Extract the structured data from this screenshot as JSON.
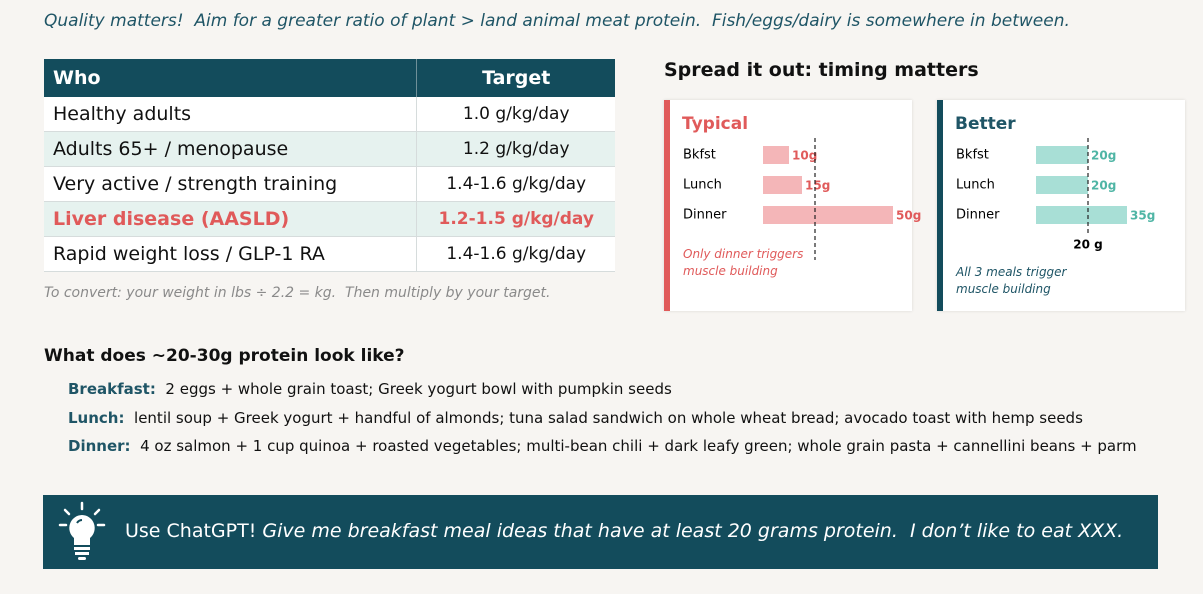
{
  "header": {
    "text": "Quality matters!  Aim for a greater ratio of plant > land animal meat protein.  Fish/eggs/dairy is somewhere in between."
  },
  "table": {
    "columns": [
      "Who",
      "Target"
    ],
    "rows": [
      [
        "Healthy adults",
        "1.0 g/kg/day"
      ],
      [
        "Adults 65+ / menopause",
        "1.2 g/kg/day"
      ],
      [
        "Very active / strength training",
        "1.4-1.6 g/kg/day"
      ],
      [
        "Liver disease (AASLD)",
        "1.2-1.5 g/kg/day"
      ],
      [
        "Rapid weight loss / GLP-1 RA",
        "1.4-1.6 g/kg/day"
      ]
    ],
    "note": "To convert: your weight in lbs ÷ 2.2 = kg.  Then multiply by your target."
  },
  "timing": {
    "title": "Spread it out: timing matters",
    "charts": [
      {
        "type": "bar",
        "title": "Typical",
        "categories": [
          "Bkfst",
          "Lunch",
          "Dinner"
        ],
        "values": [
          10,
          15,
          50
        ],
        "value_labels": [
          "10g",
          "15g",
          "50g"
        ],
        "color": "#f4b6b8",
        "label_color": "#e05a5a",
        "xlim": [
          0,
          50
        ],
        "threshold": 20,
        "note": "Only dinner triggers muscle building"
      },
      {
        "type": "bar",
        "title": "Better",
        "categories": [
          "Bkfst",
          "Lunch",
          "Dinner"
        ],
        "values": [
          20,
          20,
          35
        ],
        "value_labels": [
          "20g",
          "20g",
          "35g"
        ],
        "color": "#a8dfd6",
        "label_color": "#4fb5a5",
        "xlim": [
          0,
          50
        ],
        "threshold": {
          "value": 20,
          "label": "20 g"
        },
        "note": "All 3 meals trigger muscle building"
      }
    ]
  },
  "meals": {
    "title": "What does ~20-30g protein look like?",
    "items": [
      {
        "label": "Breakfast:",
        "text": "2 eggs + whole grain toast; Greek yogurt bowl with pumpkin seeds"
      },
      {
        "label": "Lunch:",
        "text": "lentil soup + Greek yogurt + handful of almonds; tuna salad sandwich on whole wheat bread; avocado toast with hemp seeds"
      },
      {
        "label": "Dinner:",
        "text": "4 oz salmon + 1 cup quinoa + roasted vegetables; multi-bean chili + dark leafy green; whole grain pasta + cannellini beans + parm"
      }
    ]
  },
  "banner": {
    "lead": "Use ChatGPT!",
    "prompt": "Give me breakfast meal ideas that have at least 20 grams protein.  I don’t like to eat XXX."
  }
}
